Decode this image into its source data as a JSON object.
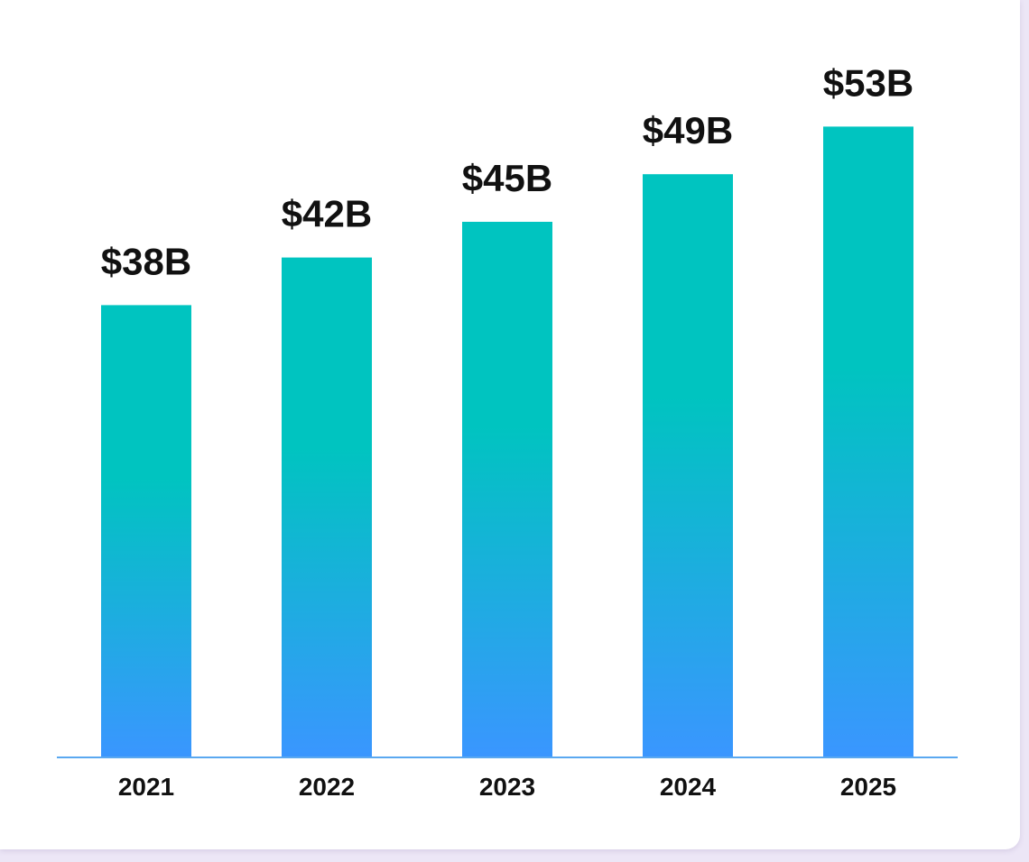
{
  "colors": {
    "bar_top": "#00c4c0",
    "bar_bottom": "#3a96ff",
    "axis": "#5aa8f0",
    "background": "#ece6f6",
    "card": "#ffffff"
  },
  "chart_data": {
    "type": "bar",
    "categories": [
      "2021",
      "2022",
      "2023",
      "2024",
      "2025"
    ],
    "values": [
      38,
      42,
      45,
      49,
      53
    ],
    "data_labels": [
      "$38B",
      "$42B",
      "$45B",
      "$49B",
      "$53B"
    ],
    "title": "",
    "xlabel": "",
    "ylabel": "",
    "ylim": [
      0,
      60
    ],
    "grid": false,
    "legend": "none"
  }
}
